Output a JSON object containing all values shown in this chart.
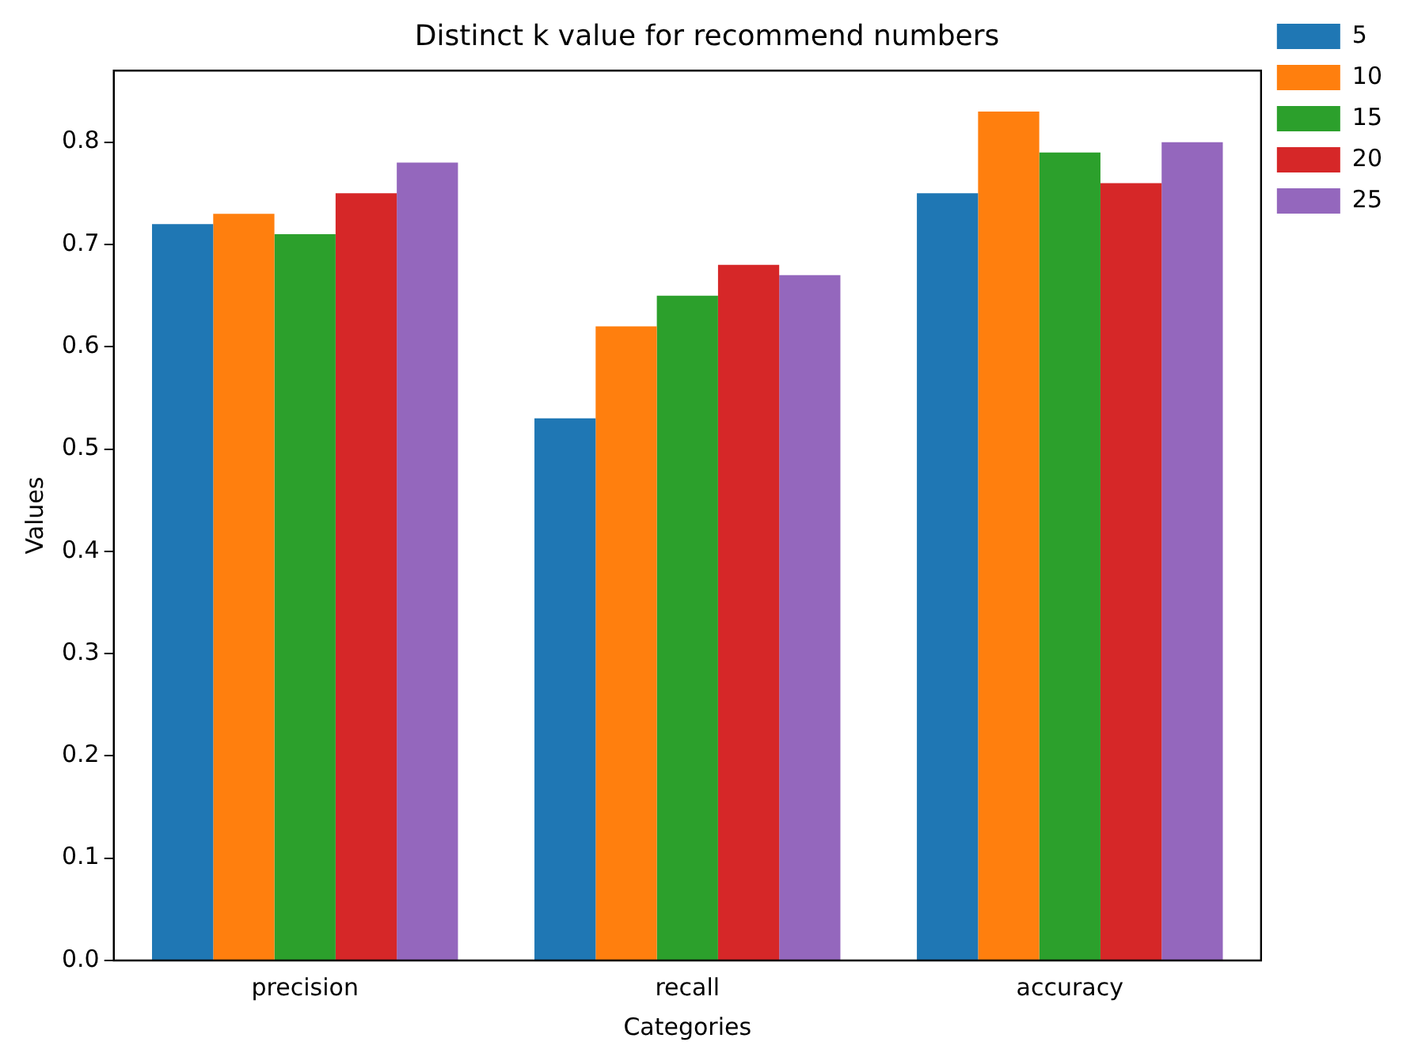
{
  "chart_data": {
    "type": "bar",
    "title": "Distinct k value for recommend numbers",
    "xlabel": "Categories",
    "ylabel": "Values",
    "categories": [
      "precision",
      "recall",
      "accuracy"
    ],
    "series": [
      {
        "name": "5",
        "color": "#1f77b4",
        "values": [
          0.72,
          0.53,
          0.75
        ]
      },
      {
        "name": "10",
        "color": "#ff7f0e",
        "values": [
          0.73,
          0.62,
          0.83
        ]
      },
      {
        "name": "15",
        "color": "#2ca02c",
        "values": [
          0.71,
          0.65,
          0.79
        ]
      },
      {
        "name": "20",
        "color": "#d62728",
        "values": [
          0.75,
          0.68,
          0.76
        ]
      },
      {
        "name": "25",
        "color": "#9467bd",
        "values": [
          0.78,
          0.67,
          0.8
        ]
      }
    ],
    "ylim": [
      0,
      0.87
    ],
    "yticks": [
      {
        "value": 0,
        "label": "0.0"
      },
      0.1,
      0.2,
      0.3,
      0.4,
      0.5,
      0.6,
      0.7,
      0.8
    ],
    "grid": false,
    "legend": "right"
  }
}
